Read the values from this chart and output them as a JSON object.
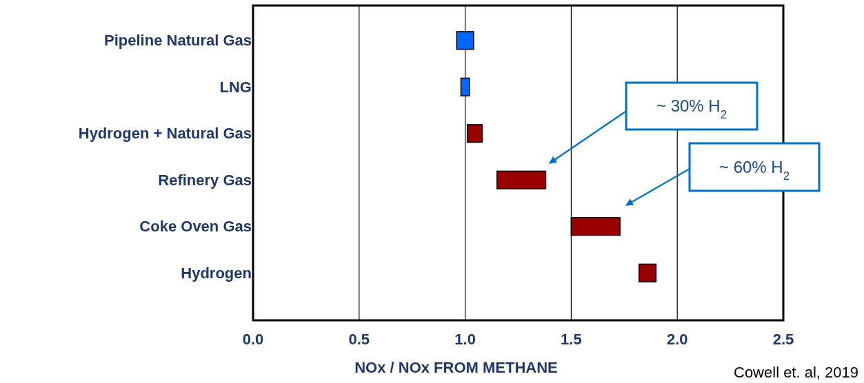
{
  "chart_data": {
    "type": "bar",
    "orientation": "horizontal",
    "xlabel": "NOx / NOx FROM METHANE",
    "categories": [
      "Pipeline Natural Gas",
      "LNG",
      "Hydrogen + Natural Gas",
      "Refinery Gas",
      "Coke Oven Gas",
      "Hydrogen"
    ],
    "base": [
      0.96,
      0.98,
      1.01,
      1.15,
      1.5,
      1.82
    ],
    "values": [
      0.08,
      0.04,
      0.07,
      0.23,
      0.23,
      0.08
    ],
    "colors": [
      "#0066ff",
      "#0066ff",
      "#990000",
      "#990000",
      "#990000",
      "#990000"
    ],
    "xlim": [
      0,
      2.5
    ],
    "xticks": [
      {
        "value": 0,
        "label": "0.0"
      },
      {
        "value": 0.5,
        "label": "0.5"
      },
      {
        "value": 1,
        "label": "1.0"
      },
      {
        "value": 1.5,
        "label": "1.5"
      },
      {
        "value": 2,
        "label": "2.0"
      },
      {
        "value": 2.5,
        "label": "2.5"
      }
    ],
    "grid": "x",
    "annotations": [
      "~ 30% H$_{2}$",
      "~ 60% H$_{2}$",
      "Cowell et. al, 2019"
    ]
  }
}
